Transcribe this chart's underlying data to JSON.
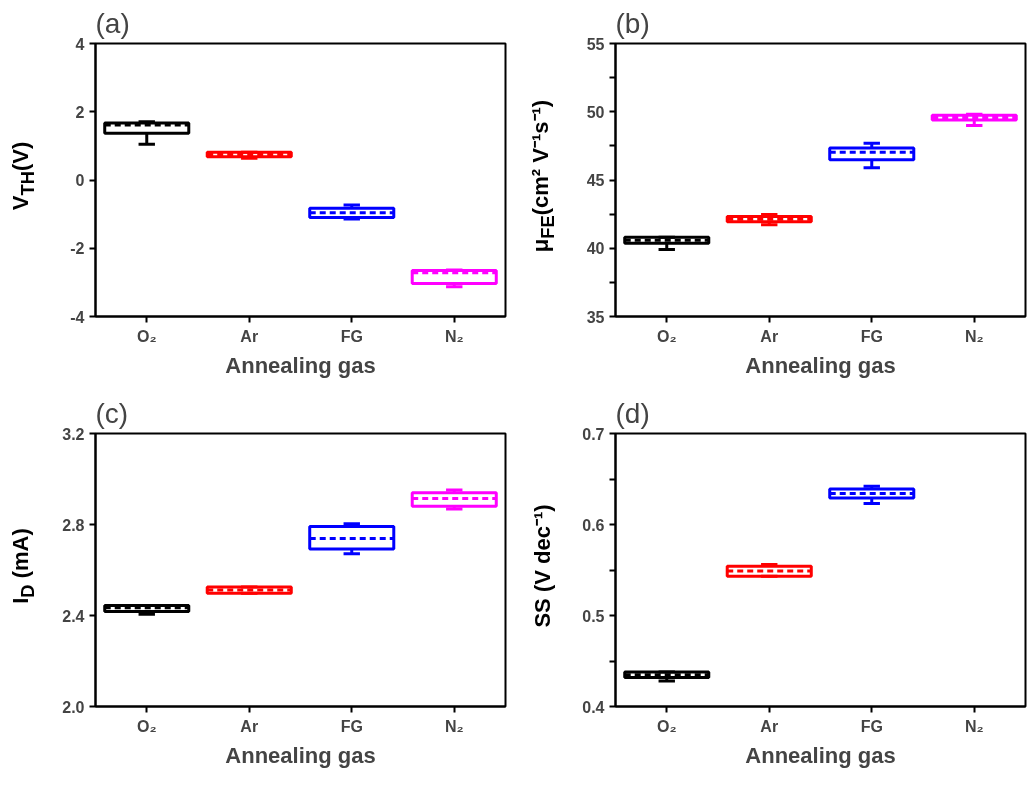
{
  "chart_data": [
    {
      "type": "box",
      "title": "(a)",
      "xlabel": "Annealing gas",
      "ylabel": "V$_{TH}$(V)",
      "categories": [
        "O₂",
        "Ar",
        "FG",
        "N₂"
      ],
      "colors": [
        "#000000",
        "#ff0000",
        "#0000ff",
        "#ff00ff"
      ],
      "boxes": [
        {
          "low": 1.05,
          "q1": 1.37,
          "median": 1.61,
          "q3": 1.67,
          "high": 1.71
        },
        {
          "low": 0.64,
          "q1": 0.68,
          "median": 0.75,
          "q3": 0.81,
          "high": 0.81
        },
        {
          "low": -1.14,
          "q1": -1.1,
          "median": -0.96,
          "q3": -0.83,
          "high": -0.73
        },
        {
          "low": -3.13,
          "q1": -3.03,
          "median": -2.72,
          "q3": -2.65,
          "high": -2.64
        }
      ],
      "ylim": [
        -4,
        4
      ],
      "yticks": [
        -4,
        -2,
        0,
        2,
        4
      ]
    },
    {
      "type": "box",
      "title": "(b)",
      "xlabel": "Annealing gas",
      "ylabel": "μ$_{FE}$(cm² V⁻¹s⁻¹)",
      "categories": [
        "O₂",
        "Ar",
        "FG",
        "N₂"
      ],
      "colors": [
        "#000000",
        "#ff0000",
        "#0000ff",
        "#ff00ff"
      ],
      "boxes": [
        {
          "low": 39.9,
          "q1": 40.36,
          "median": 40.58,
          "q3": 40.8,
          "high": 40.8
        },
        {
          "low": 41.72,
          "q1": 41.94,
          "median": 42.13,
          "q3": 42.33,
          "high": 42.48
        },
        {
          "low": 45.9,
          "q1": 46.49,
          "median": 47.03,
          "q3": 47.34,
          "high": 47.69
        },
        {
          "low": 49.0,
          "q1": 49.4,
          "median": 49.57,
          "q3": 49.75,
          "high": 49.81
        }
      ],
      "ylim": [
        35,
        55
      ],
      "yticks": [
        35,
        {
          "value": 37.5,
          "label": null
        },
        40,
        {
          "value": 42.5,
          "label": null
        },
        45,
        {
          "value": 47.5,
          "label": null
        },
        50,
        {
          "value": 52.5,
          "label": null
        },
        55
      ]
    },
    {
      "type": "box",
      "title": "(c)",
      "xlabel": "Annealing gas",
      "ylabel": "I$_{D}$ (mA)",
      "categories": [
        "O₂",
        "Ar",
        "FG",
        "N₂"
      ],
      "colors": [
        "#000000",
        "#ff0000",
        "#0000ff",
        "#ff00ff"
      ],
      "boxes": [
        {
          "low": 2.405,
          "q1": 2.418,
          "median": 2.434,
          "q3": 2.444,
          "high": 2.444
        },
        {
          "low": 2.498,
          "q1": 2.498,
          "median": 2.512,
          "q3": 2.525,
          "high": 2.525
        },
        {
          "low": 2.671,
          "q1": 2.692,
          "median": 2.738,
          "q3": 2.791,
          "high": 2.803
        },
        {
          "low": 2.868,
          "q1": 2.88,
          "median": 2.914,
          "q3": 2.94,
          "high": 2.952
        }
      ],
      "ylim": [
        2.0,
        3.2
      ],
      "yticks": [
        {
          "value": 2.0,
          "label": "2.0"
        },
        2.4,
        2.8,
        3.2
      ]
    },
    {
      "type": "box",
      "title": "(d)",
      "xlabel": "Annealing gas",
      "ylabel": "SS (V dec⁻¹)",
      "categories": [
        "O₂",
        "Ar",
        "FG",
        "N₂"
      ],
      "colors": [
        "#000000",
        "#ff0000",
        "#0000ff",
        "#ff00ff"
      ],
      "boxes": [
        {
          "low": 0.428,
          "q1": 0.4318,
          "median": 0.435,
          "q3": 0.4378,
          "high": 0.4378
        },
        {
          "low": 0.543,
          "q1": 0.543,
          "median": 0.549,
          "q3": 0.554,
          "high": 0.556
        },
        {
          "low": 0.623,
          "q1": 0.629,
          "median": 0.634,
          "q3": 0.639,
          "high": 0.642
        },
        null
      ],
      "ylim": [
        0.4,
        0.7
      ],
      "yticks": [
        0.4,
        {
          "value": 0.45,
          "label": null
        },
        0.5,
        {
          "value": 0.55,
          "label": null
        },
        0.6,
        {
          "value": 0.65,
          "label": null
        },
        0.7
      ]
    }
  ]
}
